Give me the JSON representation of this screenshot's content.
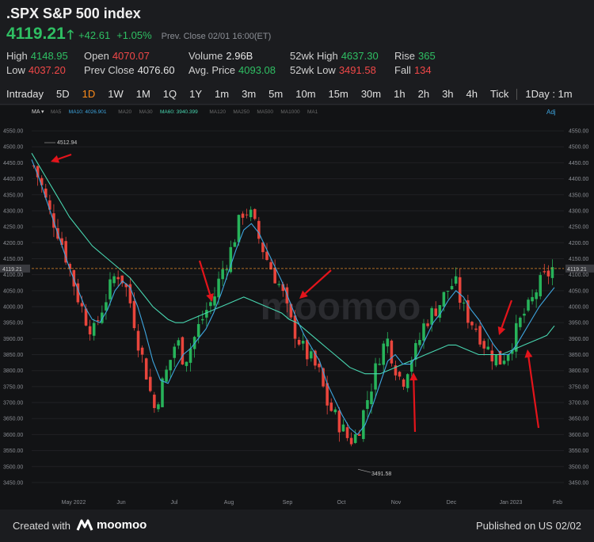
{
  "header": {
    "title": ".SPX S&P 500 index",
    "last_price": "4119.21",
    "change": "+42.61",
    "change_pct": "+1.05%",
    "prev_close_label": "Prev. Close 02/01 16:00(ET)"
  },
  "stats": {
    "high": {
      "label": "High",
      "value": "4148.95"
    },
    "low": {
      "label": "Low",
      "value": "4037.20"
    },
    "open": {
      "label": "Open",
      "value": "4070.07"
    },
    "prev_close": {
      "label": "Prev Close",
      "value": "4076.60"
    },
    "volume": {
      "label": "Volume",
      "value": "2.96B"
    },
    "avg_price": {
      "label": "Avg. Price",
      "value": "4093.08"
    },
    "wk52_high": {
      "label": "52wk High",
      "value": "4637.30"
    },
    "wk52_low": {
      "label": "52wk Low",
      "value": "3491.58"
    },
    "rise": {
      "label": "Rise",
      "value": "365"
    },
    "fall": {
      "label": "Fall",
      "value": "134"
    }
  },
  "tabs": [
    "Intraday",
    "5D",
    "1D",
    "1W",
    "1M",
    "1Q",
    "1Y",
    "1m",
    "3m",
    "5m",
    "10m",
    "15m",
    "30m",
    "1h",
    "2h",
    "3h",
    "4h",
    "Tick",
    "1Day : 1m"
  ],
  "active_tab": "1D",
  "indicators": {
    "ma_label": "MA",
    "items": [
      {
        "label": "MA5",
        "color": "#6a6a6a"
      },
      {
        "label": "MA10: 4026.901",
        "color": "#3ea6e0"
      },
      {
        "label": "MA20",
        "color": "#6a6a6a"
      },
      {
        "label": "MA30",
        "color": "#6a6a6a"
      },
      {
        "label": "MA60: 3940.399",
        "color": "#48d6b0"
      },
      {
        "label": "MA120",
        "color": "#6a6a6a"
      },
      {
        "label": "MA250",
        "color": "#6a6a6a"
      },
      {
        "label": "MA500",
        "color": "#6a6a6a"
      },
      {
        "label": "MA1000",
        "color": "#6a6a6a"
      },
      {
        "label": "MA1",
        "color": "#6a6a6a"
      }
    ],
    "adj_label": "Adj"
  },
  "chart_data": {
    "type": "candlestick",
    "ylim": [
      3430,
      4570
    ],
    "y_ticks": [
      "4550.00",
      "4500.00",
      "4450.00",
      "4400.00",
      "4350.00",
      "4300.00",
      "4250.00",
      "4200.00",
      "4150.00",
      "4100.00",
      "4050.00",
      "4000.00",
      "3950.00",
      "3900.00",
      "3850.00",
      "3800.00",
      "3750.00",
      "3700.00",
      "3650.00",
      "3600.00",
      "3550.00",
      "3500.00",
      "3450.00"
    ],
    "x_labels": [
      "May 2022",
      "Jun",
      "Jul",
      "Aug",
      "Sep",
      "Oct",
      "Nov",
      "Dec",
      "Jan 2023",
      "Feb"
    ],
    "current_price_label": "4119.21",
    "high_annotation": "4512.94",
    "low_annotation": "3491.58",
    "close_path": [
      4440,
      4380,
      4300,
      4250,
      4180,
      4100,
      4020,
      3960,
      3920,
      3990,
      4050,
      4110,
      4080,
      4000,
      3880,
      3790,
      3680,
      3750,
      3820,
      3900,
      3830,
      3880,
      3940,
      3990,
      4030,
      4110,
      4160,
      4240,
      4310,
      4280,
      4210,
      4150,
      4100,
      4050,
      3960,
      3910,
      3860,
      3830,
      3790,
      3700,
      3660,
      3620,
      3580,
      3600,
      3680,
      3760,
      3850,
      3900,
      3820,
      3760,
      3830,
      3870,
      3950,
      3980,
      4010,
      4050,
      4080,
      4000,
      3960,
      3930,
      3880,
      3850,
      3830,
      3860,
      3910,
      3970,
      4000,
      4060,
      4090,
      4120
    ],
    "ma10_path": [
      4460,
      4400,
      4330,
      4260,
      4190,
      4120,
      4060,
      4000,
      3960,
      3950,
      3990,
      4050,
      4080,
      4060,
      4000,
      3920,
      3830,
      3770,
      3760,
      3810,
      3850,
      3870,
      3900,
      3930,
      3980,
      4040,
      4110,
      4180,
      4240,
      4260,
      4230,
      4180,
      4130,
      4080,
      4020,
      3960,
      3910,
      3870,
      3830,
      3760,
      3710,
      3660,
      3620,
      3600,
      3630,
      3690,
      3760,
      3830,
      3850,
      3820,
      3820,
      3850,
      3900,
      3950,
      3980,
      4020,
      4050,
      4030,
      3990,
      3960,
      3920,
      3880,
      3850,
      3850,
      3880,
      3920,
      3960,
      4000,
      4030,
      4060
    ],
    "ma60_path": [
      4480,
      4440,
      4400,
      4360,
      4320,
      4280,
      4250,
      4220,
      4190,
      4170,
      4150,
      4130,
      4110,
      4090,
      4060,
      4030,
      4000,
      3980,
      3960,
      3950,
      3950,
      3960,
      3970,
      3980,
      3990,
      4000,
      4010,
      4020,
      4030,
      4020,
      4010,
      4000,
      3990,
      3980,
      3960,
      3950,
      3930,
      3910,
      3890,
      3870,
      3850,
      3830,
      3810,
      3800,
      3790,
      3790,
      3790,
      3800,
      3810,
      3820,
      3830,
      3840,
      3850,
      3860,
      3870,
      3880,
      3880,
      3870,
      3860,
      3850,
      3850,
      3850,
      3850,
      3860,
      3870,
      3880,
      3890,
      3900,
      3910,
      3940
    ]
  },
  "watermark": "moomoo",
  "footer": {
    "created_with": "Created with",
    "logo_text": "moomoo",
    "published": "Published on US 02/02"
  }
}
